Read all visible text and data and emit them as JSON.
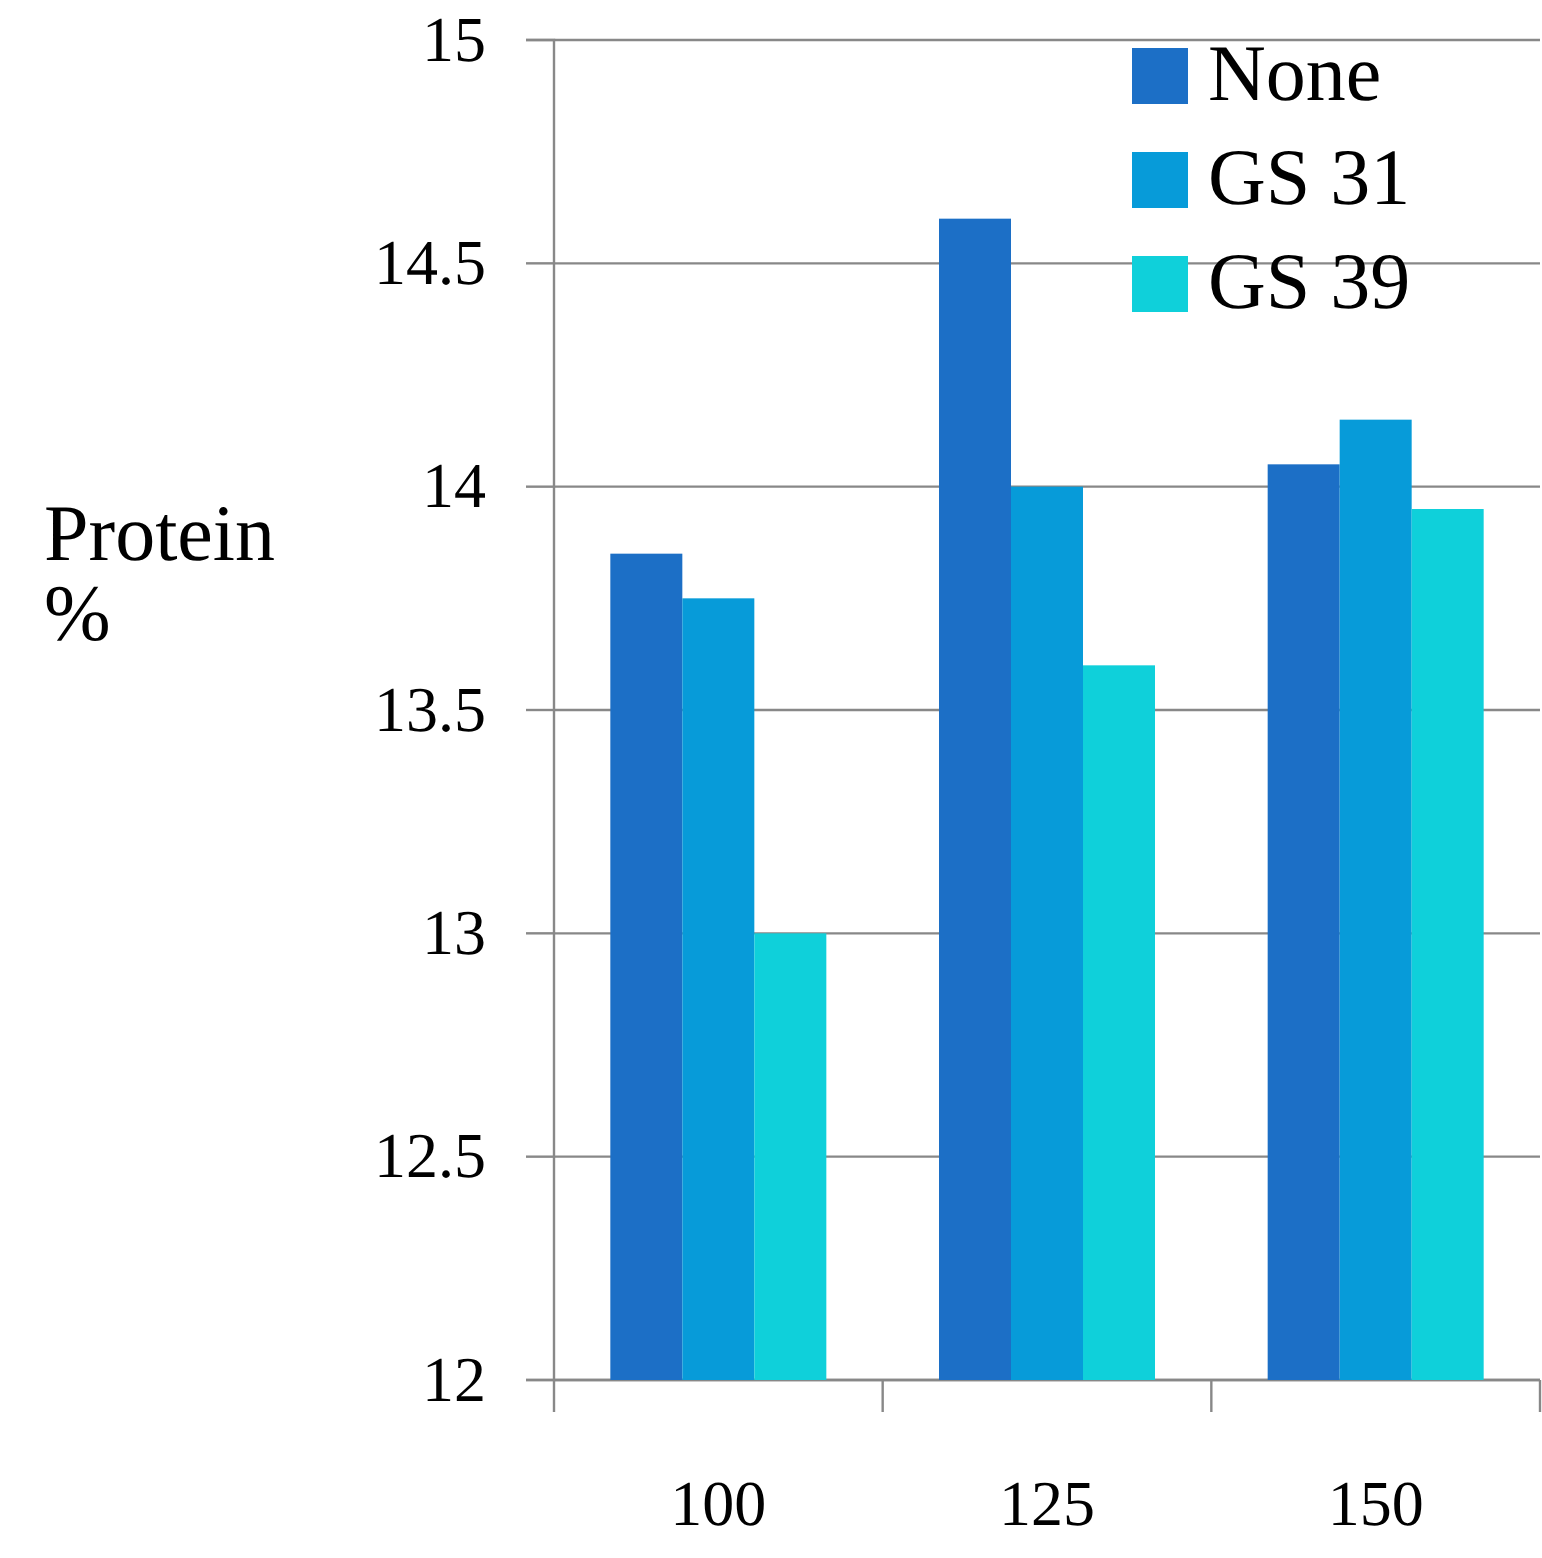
{
  "chart_data": {
    "type": "bar",
    "ylabel": "Protein %",
    "categories": [
      "100",
      "125",
      "150"
    ],
    "series": [
      {
        "name": "None",
        "color": "#1c6fc6",
        "values": [
          13.85,
          14.6,
          14.05
        ]
      },
      {
        "name": "GS 31",
        "color": "#079bd9",
        "values": [
          13.75,
          14.0,
          14.15
        ]
      },
      {
        "name": "GS 39",
        "color": "#0fd0da",
        "values": [
          13.0,
          13.6,
          13.95
        ]
      }
    ],
    "ylim": [
      12,
      15
    ],
    "yticks": [
      12,
      12.5,
      13,
      13.5,
      14,
      14.5,
      15
    ],
    "grid": "y",
    "legend": "top right"
  }
}
